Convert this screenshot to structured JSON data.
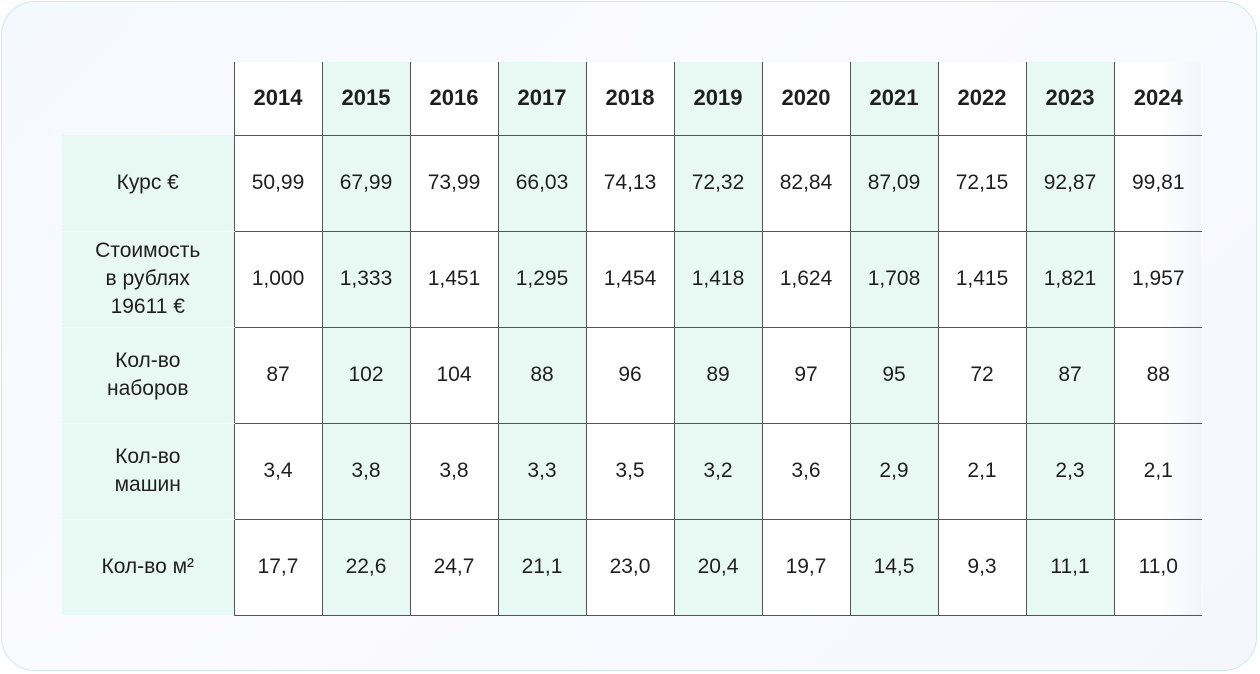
{
  "table": {
    "years": [
      "2014",
      "2015",
      "2016",
      "2017",
      "2018",
      "2019",
      "2020",
      "2021",
      "2022",
      "2023",
      "2024"
    ],
    "rows": [
      {
        "label_lines": [
          "Курс €"
        ],
        "values": [
          "50,99",
          "67,99",
          "73,99",
          "66,03",
          "74,13",
          "72,32",
          "82,84",
          "87,09",
          "72,15",
          "92,87",
          "99,81"
        ]
      },
      {
        "label_lines": [
          "Стоимость",
          "в рублях",
          "19611 €"
        ],
        "values": [
          "1,000",
          "1,333",
          "1,451",
          "1,295",
          "1,454",
          "1,418",
          "1,624",
          "1,708",
          "1,415",
          "1,821",
          "1,957"
        ]
      },
      {
        "label_lines": [
          "Кол-во",
          "наборов"
        ],
        "values": [
          "87",
          "102",
          "104",
          "88",
          "96",
          "89",
          "97",
          "95",
          "72",
          "87",
          "88"
        ]
      },
      {
        "label_lines": [
          "Кол-во",
          "машин"
        ],
        "values": [
          "3,4",
          "3,8",
          "3,8",
          "3,3",
          "3,5",
          "3,2",
          "3,6",
          "2,9",
          "2,1",
          "2,3",
          "2,1"
        ]
      },
      {
        "label_lines": [
          "Кол-во м²"
        ],
        "values": [
          "17,7",
          "22,6",
          "24,7",
          "21,1",
          "23,0",
          "20,4",
          "19,7",
          "14,5",
          "9,3",
          "11,1",
          "11,0"
        ]
      }
    ]
  },
  "colors": {
    "accent_band": "#e8f8f3",
    "grid_line": "#555555",
    "card_border": "#cfe9e2"
  }
}
